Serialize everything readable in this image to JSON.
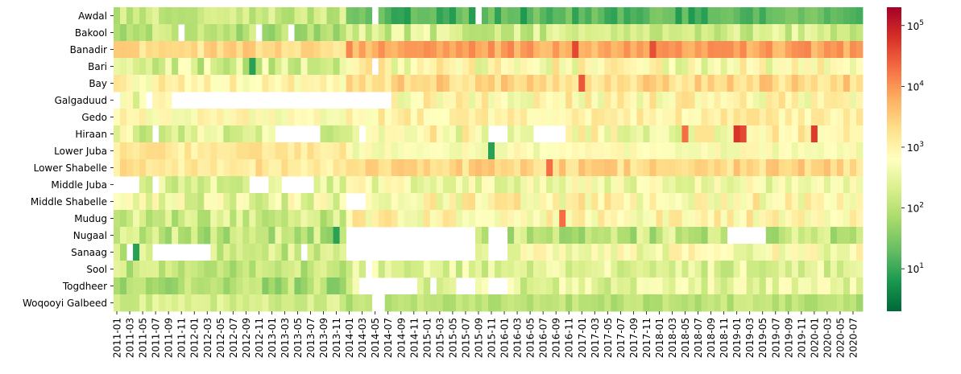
{
  "chart_data": {
    "type": "heatmap",
    "title": "",
    "xlabel": "",
    "ylabel": "",
    "rows": [
      "Awdal",
      "Bakool",
      "Banadir",
      "Bari",
      "Bay",
      "Galgaduud",
      "Gedo",
      "Hiraan",
      "Lower Juba",
      "Lower Shabelle",
      "Middle Juba",
      "Middle Shabelle",
      "Mudug",
      "Nugaal",
      "Sanaag",
      "Sool",
      "Togdheer",
      "Woqooyi Galbeed"
    ],
    "x_start": "2011-01",
    "x_end": "2020-08",
    "x_tick_labels": [
      "2011-01",
      "2011-03",
      "2011-05",
      "2011-07",
      "2011-09",
      "2011-11",
      "2012-01",
      "2012-03",
      "2012-05",
      "2012-07",
      "2012-09",
      "2012-11",
      "2013-01",
      "2013-03",
      "2013-05",
      "2013-07",
      "2013-09",
      "2013-11",
      "2014-01",
      "2014-03",
      "2014-05",
      "2014-07",
      "2014-09",
      "2014-11",
      "2015-01",
      "2015-03",
      "2015-05",
      "2015-07",
      "2015-09",
      "2015-11",
      "2016-01",
      "2016-03",
      "2016-05",
      "2016-07",
      "2016-09",
      "2016-11",
      "2017-01",
      "2017-03",
      "2017-05",
      "2017-07",
      "2017-09",
      "2017-11",
      "2018-01",
      "2018-03",
      "2018-05",
      "2018-07",
      "2018-09",
      "2018-11",
      "2019-01",
      "2019-03",
      "2019-05",
      "2019-07",
      "2019-09",
      "2019-11",
      "2020-01",
      "2020-03",
      "2020-05",
      "2020-07"
    ],
    "color_scale": {
      "type": "log",
      "range": [
        2,
        200000
      ],
      "colormap": "RdYlGn_r",
      "tick_labels": [
        "10^1",
        "10^2",
        "10^3",
        "10^4",
        "10^5"
      ]
    },
    "row_profiles": [
      {
        "level": 150,
        "spread": 0.35,
        "eras": [
          [
            36,
            116,
            0.1
          ]
        ],
        "missing": [
          [
            40,
            41
          ],
          [
            56,
            57
          ]
        ]
      },
      {
        "level": 110,
        "spread": 0.45,
        "eras": [
          [
            36,
            116,
            1.8
          ]
        ],
        "missing": [
          [
            10,
            11
          ],
          [
            22,
            23
          ],
          [
            27,
            28
          ]
        ]
      },
      {
        "level": 2200,
        "spread": 0.3,
        "eras": [
          [
            36,
            116,
            3.2
          ]
        ],
        "missing": []
      },
      {
        "level": 200,
        "spread": 0.55,
        "eras": [
          [
            36,
            116,
            3.2
          ]
        ],
        "missing": [
          [
            40,
            41
          ]
        ]
      },
      {
        "level": 900,
        "spread": 0.35,
        "eras": [
          [
            36,
            116,
            2.6
          ]
        ],
        "missing": []
      },
      {
        "level": 400,
        "spread": 0.45,
        "eras": [
          [
            36,
            116,
            2.0
          ]
        ],
        "missing": [
          [
            0,
            1
          ],
          [
            5,
            6
          ],
          [
            9,
            43
          ]
        ]
      },
      {
        "level": 700,
        "spread": 0.3,
        "eras": [
          [
            36,
            116,
            1.5
          ]
        ],
        "missing": []
      },
      {
        "level": 300,
        "spread": 0.6,
        "eras": [
          [
            36,
            116,
            2.0
          ]
        ],
        "missing": [
          [
            6,
            7
          ],
          [
            25,
            32
          ],
          [
            38,
            39
          ],
          [
            58,
            61
          ],
          [
            65,
            70
          ]
        ]
      },
      {
        "level": 1400,
        "spread": 0.25,
        "eras": [
          [
            36,
            116,
            0.4
          ]
        ],
        "missing": []
      },
      {
        "level": 1500,
        "spread": 0.3,
        "eras": [
          [
            36,
            116,
            1.6
          ]
        ],
        "missing": []
      },
      {
        "level": 250,
        "spread": 0.4,
        "eras": [
          [
            36,
            116,
            1.8
          ]
        ],
        "missing": [
          [
            0,
            4
          ],
          [
            6,
            7
          ],
          [
            21,
            24
          ],
          [
            26,
            31
          ]
        ]
      },
      {
        "level": 350,
        "spread": 0.5,
        "eras": [
          [
            36,
            116,
            2.2
          ]
        ],
        "missing": [
          [
            36,
            39
          ]
        ]
      },
      {
        "level": 150,
        "spread": 0.45,
        "eras": [
          [
            36,
            116,
            5.5
          ]
        ],
        "missing": []
      },
      {
        "level": 120,
        "spread": 0.5,
        "eras": [
          [
            36,
            116,
            1.0
          ]
        ],
        "missing": [
          [
            36,
            56
          ],
          [
            58,
            61
          ],
          [
            95,
            101
          ]
        ]
      },
      {
        "level": 150,
        "spread": 0.45,
        "eras": [
          [
            36,
            116,
            3.5
          ]
        ],
        "missing": [
          [
            2,
            3
          ],
          [
            6,
            15
          ],
          [
            29,
            30
          ],
          [
            36,
            56
          ],
          [
            58,
            61
          ]
        ]
      },
      {
        "level": 130,
        "spread": 0.4,
        "eras": [
          [
            36,
            116,
            2.0
          ]
        ],
        "missing": [
          [
            39,
            40
          ]
        ]
      },
      {
        "level": 80,
        "spread": 0.45,
        "eras": [
          [
            36,
            116,
            3.5
          ]
        ],
        "missing": [
          [
            38,
            47
          ],
          [
            49,
            50
          ],
          [
            53,
            56
          ],
          [
            58,
            61
          ]
        ]
      },
      {
        "level": 200,
        "spread": 0.25,
        "eras": [
          [
            36,
            116,
            0.5
          ]
        ],
        "missing": [
          [
            40,
            42
          ]
        ]
      }
    ],
    "hot_cells": [
      {
        "row": 2,
        "col": 71,
        "value": 40000
      },
      {
        "row": 2,
        "col": 83,
        "value": 35000
      },
      {
        "row": 4,
        "col": 72,
        "value": 30000
      },
      {
        "row": 7,
        "col": 96,
        "value": 60000
      },
      {
        "row": 7,
        "col": 97,
        "value": 40000
      },
      {
        "row": 7,
        "col": 108,
        "value": 50000
      },
      {
        "row": 7,
        "col": 88,
        "value": 20000
      },
      {
        "row": 9,
        "col": 67,
        "value": 20000
      },
      {
        "row": 12,
        "col": 69,
        "value": 20000
      },
      {
        "row": 8,
        "col": 58,
        "value": 8
      },
      {
        "row": 3,
        "col": 21,
        "value": 8
      },
      {
        "row": 14,
        "col": 3,
        "value": 8
      },
      {
        "row": 13,
        "col": 34,
        "value": 8
      }
    ]
  }
}
